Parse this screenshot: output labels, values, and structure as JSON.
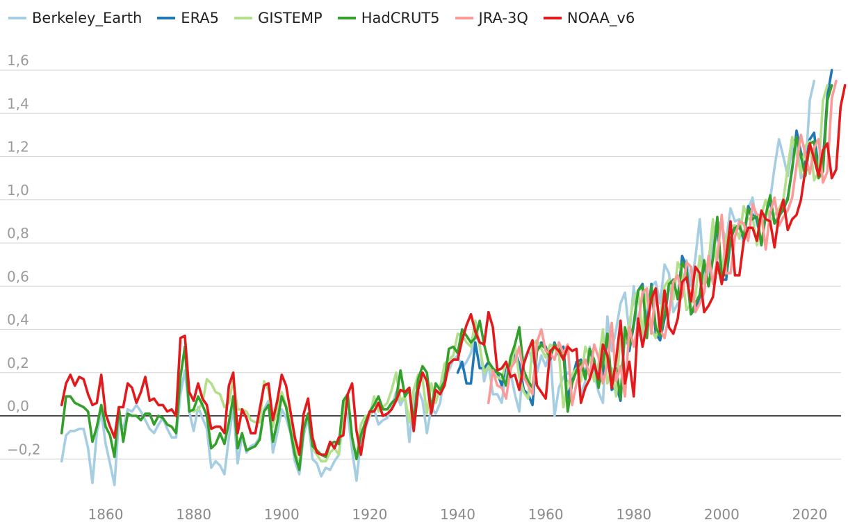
{
  "chart_data": {
    "type": "line",
    "title": "",
    "xlabel": "",
    "ylabel": "",
    "xlim": [
      1849,
      2025
    ],
    "ylim": [
      -0.33,
      1.68
    ],
    "legend_position": "top-left",
    "grid": true,
    "zero_line": true,
    "y_ticks": [
      {
        "value": -0.2,
        "label": "−0,2"
      },
      {
        "value": 0.0,
        "label": "0,0"
      },
      {
        "value": 0.2,
        "label": "0,2"
      },
      {
        "value": 0.4,
        "label": "0,4"
      },
      {
        "value": 0.6,
        "label": "0,6"
      },
      {
        "value": 0.8,
        "label": "0,8"
      },
      {
        "value": 1.0,
        "label": "1,0"
      },
      {
        "value": 1.2,
        "label": "1,2"
      },
      {
        "value": 1.4,
        "label": "1,4"
      },
      {
        "value": 1.6,
        "label": "1,6"
      }
    ],
    "x_ticks": [
      {
        "value": 1860,
        "label": "1860"
      },
      {
        "value": 1880,
        "label": "1880"
      },
      {
        "value": 1900,
        "label": "1900"
      },
      {
        "value": 1920,
        "label": "1920"
      },
      {
        "value": 1940,
        "label": "1940"
      },
      {
        "value": 1960,
        "label": "1960"
      },
      {
        "value": 1980,
        "label": "1980"
      },
      {
        "value": 2000,
        "label": "2000"
      },
      {
        "value": 2020,
        "label": "2020"
      }
    ],
    "series": [
      {
        "name": "Berkeley_Earth",
        "color": "#a6cee3",
        "start": 1850,
        "values": [
          -0.21,
          -0.09,
          -0.07,
          -0.07,
          -0.06,
          -0.06,
          -0.15,
          -0.31,
          -0.08,
          0.02,
          -0.13,
          -0.22,
          -0.32,
          -0.02,
          -0.06,
          0.03,
          0.02,
          0.05,
          0.02,
          -0.02,
          -0.06,
          -0.08,
          -0.04,
          -0.01,
          -0.06,
          -0.1,
          -0.1,
          0.1,
          0.21,
          0.02,
          -0.07,
          0.04,
          -0.01,
          -0.06,
          -0.24,
          -0.21,
          -0.23,
          -0.27,
          -0.1,
          0.04,
          -0.22,
          -0.09,
          -0.17,
          -0.14,
          -0.13,
          -0.1,
          0.03,
          0.07,
          -0.17,
          -0.08,
          0.03,
          -0.01,
          -0.08,
          -0.21,
          -0.27,
          -0.09,
          -0.01,
          -0.2,
          -0.22,
          -0.28,
          -0.24,
          -0.25,
          -0.21,
          -0.18,
          -0.01,
          0.01,
          -0.16,
          -0.3,
          -0.11,
          -0.06,
          0.0,
          0.03,
          -0.04,
          -0.02,
          -0.01,
          0.04,
          0.11,
          0.05,
          0.09,
          -0.12,
          0.09,
          0.12,
          0.07,
          -0.08,
          0.04,
          0.01,
          0.06,
          0.19,
          0.21,
          0.26,
          0.28,
          0.22,
          0.25,
          0.29,
          0.38,
          0.33,
          0.16,
          0.24,
          0.1,
          0.1,
          0.06,
          0.21,
          0.2,
          0.1,
          0.02,
          0.26,
          0.3,
          0.27,
          0.2,
          0.28,
          0.23,
          0.3,
          0.0,
          0.13,
          0.18,
          0.2,
          0.18,
          0.25,
          0.1,
          0.16,
          0.32,
          0.2,
          0.11,
          0.06,
          0.46,
          0.3,
          0.4,
          0.52,
          0.57,
          0.38,
          0.6,
          0.38,
          0.36,
          0.47,
          0.6,
          0.62,
          0.52,
          0.7,
          0.66,
          0.48,
          0.52,
          0.55,
          0.72,
          0.6,
          0.73,
          0.91,
          0.64,
          0.66,
          0.82,
          0.9,
          0.88,
          0.81,
          0.96,
          0.9,
          0.91,
          0.79,
          0.96,
          1.01,
          0.88,
          0.9,
          0.93,
          1.0,
          1.15,
          1.28,
          1.2,
          1.11,
          1.24,
          1.28,
          1.1,
          1.13,
          1.46,
          1.55
        ]
      },
      {
        "name": "ERA5",
        "color": "#1f78b4",
        "start": 1940,
        "values": [
          0.2,
          0.25,
          0.15,
          0.15,
          0.34,
          0.22,
          0.22,
          0.25,
          0.21,
          0.2,
          0.14,
          0.24,
          0.21,
          0.3,
          0.24,
          0.12,
          0.1,
          0.05,
          0.3,
          0.34,
          0.32,
          0.26,
          0.34,
          0.28,
          0.32,
          0.08,
          0.16,
          0.25,
          0.26,
          0.18,
          0.3,
          0.25,
          0.14,
          0.2,
          0.38,
          0.12,
          0.14,
          0.07,
          0.4,
          0.3,
          0.42,
          0.58,
          0.61,
          0.4,
          0.61,
          0.38,
          0.35,
          0.45,
          0.6,
          0.63,
          0.54,
          0.74,
          0.69,
          0.47,
          0.5,
          0.55,
          0.71,
          0.6,
          0.73,
          0.89,
          0.63,
          0.63,
          0.81,
          0.88,
          0.87,
          0.82,
          0.97,
          0.93,
          0.91,
          0.79,
          0.93,
          1.0,
          0.89,
          0.93,
          0.95,
          1.01,
          1.14,
          1.32,
          1.22,
          1.15,
          1.28,
          1.31,
          1.14,
          1.18,
          1.48,
          1.6
        ]
      },
      {
        "name": "GISTEMP",
        "color": "#b2df8a",
        "start": 1880,
        "values": [
          0.02,
          0.03,
          0.06,
          0.17,
          0.15,
          0.11,
          0.1,
          0.04,
          0.06,
          0.17,
          0.03,
          0.03,
          0.02,
          -0.02,
          -0.03,
          -0.03,
          0.16,
          0.12,
          -0.05,
          0.03,
          0.11,
          0.05,
          -0.05,
          -0.15,
          -0.24,
          -0.06,
          0.01,
          -0.15,
          -0.18,
          -0.21,
          -0.21,
          -0.17,
          -0.15,
          -0.18,
          0.03,
          0.1,
          -0.11,
          -0.19,
          -0.04,
          0.0,
          0.0,
          0.09,
          0.02,
          0.04,
          0.06,
          0.12,
          0.2,
          0.07,
          0.09,
          -0.03,
          0.12,
          0.19,
          0.17,
          0.01,
          0.15,
          0.06,
          0.13,
          0.24,
          0.26,
          0.28,
          0.38,
          0.37,
          0.34,
          0.32,
          0.44,
          0.32,
          0.2,
          0.23,
          0.2,
          0.18,
          0.17,
          0.25,
          0.2,
          0.33,
          0.18,
          0.11,
          0.08,
          0.33,
          0.35,
          0.31,
          0.27,
          0.33,
          0.31,
          0.29,
          0.04,
          0.15,
          0.19,
          0.22,
          0.16,
          0.32,
          0.27,
          0.16,
          0.24,
          0.4,
          0.15,
          0.22,
          0.09,
          0.4,
          0.33,
          0.43,
          0.54,
          0.58,
          0.38,
          0.59,
          0.4,
          0.36,
          0.46,
          0.6,
          0.63,
          0.54,
          0.71,
          0.66,
          0.49,
          0.52,
          0.55,
          0.74,
          0.61,
          0.71,
          0.91,
          0.66,
          0.66,
          0.82,
          0.88,
          0.88,
          0.82,
          0.97,
          0.91,
          0.92,
          0.79,
          0.93,
          1.0,
          0.9,
          0.93,
          0.96,
          1.0,
          1.15,
          1.29,
          1.21,
          1.12,
          1.25,
          1.27,
          1.09,
          1.13,
          1.46,
          1.53
        ]
      },
      {
        "name": "HadCRUT5",
        "color": "#33a02c",
        "start": 1850,
        "values": [
          -0.08,
          0.09,
          0.09,
          0.06,
          0.05,
          0.04,
          0.02,
          -0.12,
          -0.05,
          0.05,
          -0.05,
          -0.09,
          -0.19,
          0.04,
          -0.12,
          0.01,
          0.0,
          0.0,
          -0.02,
          0.01,
          0.01,
          -0.04,
          0.0,
          -0.01,
          -0.04,
          -0.05,
          -0.08,
          0.18,
          0.32,
          0.02,
          0.03,
          0.09,
          0.05,
          0.0,
          -0.15,
          -0.13,
          -0.08,
          -0.13,
          -0.03,
          0.09,
          -0.15,
          -0.08,
          -0.16,
          -0.15,
          -0.14,
          -0.11,
          0.02,
          0.05,
          -0.12,
          -0.03,
          0.09,
          0.04,
          -0.07,
          -0.18,
          -0.25,
          -0.06,
          0.01,
          -0.14,
          -0.16,
          -0.18,
          -0.19,
          -0.13,
          -0.12,
          -0.13,
          0.07,
          0.1,
          -0.1,
          -0.2,
          -0.09,
          -0.03,
          0.02,
          0.05,
          0.09,
          0.03,
          0.03,
          0.06,
          0.08,
          0.21,
          0.09,
          0.12,
          -0.03,
          0.17,
          0.23,
          0.2,
          0.03,
          0.15,
          0.12,
          0.16,
          0.31,
          0.32,
          0.29,
          0.4,
          0.37,
          0.34,
          0.36,
          0.44,
          0.33,
          0.25,
          0.22,
          0.2,
          0.19,
          0.14,
          0.27,
          0.33,
          0.41,
          0.21,
          0.16,
          0.13,
          0.3,
          0.33,
          0.31,
          0.27,
          0.33,
          0.31,
          0.29,
          0.02,
          0.15,
          0.21,
          0.25,
          0.17,
          0.31,
          0.26,
          0.13,
          0.24,
          0.38,
          0.14,
          0.22,
          0.08,
          0.41,
          0.32,
          0.43,
          0.58,
          0.6,
          0.36,
          0.6,
          0.41,
          0.37,
          0.47,
          0.61,
          0.63,
          0.54,
          0.71,
          0.67,
          0.47,
          0.52,
          0.56,
          0.72,
          0.6,
          0.73,
          0.92,
          0.64,
          0.66,
          0.82,
          0.87,
          0.88,
          0.83,
          0.96,
          0.91,
          0.93,
          0.79,
          0.93,
          1.02,
          0.89,
          0.92,
          0.96,
          1.0,
          1.15,
          1.29,
          1.2,
          1.11,
          1.26,
          1.27,
          1.1,
          1.13,
          1.46,
          1.53
        ]
      },
      {
        "name": "JRA-3Q",
        "color": "#fb9a99",
        "start": 1947,
        "values": [
          0.06,
          0.21,
          0.14,
          0.13,
          0.08,
          0.22,
          0.25,
          0.32,
          0.18,
          0.14,
          0.1,
          0.34,
          0.4,
          0.3,
          0.29,
          0.26,
          0.34,
          0.29,
          0.33,
          0.05,
          0.15,
          0.22,
          0.26,
          0.18,
          0.33,
          0.27,
          0.15,
          0.24,
          0.43,
          0.16,
          0.23,
          0.09,
          0.41,
          0.32,
          0.43,
          0.57,
          0.59,
          0.38,
          0.59,
          0.4,
          0.36,
          0.47,
          0.62,
          0.65,
          0.55,
          0.71,
          0.69,
          0.48,
          0.52,
          0.57,
          0.74,
          0.61,
          0.73,
          0.93,
          0.66,
          0.66,
          0.83,
          0.9,
          0.89,
          0.81,
          0.98,
          0.93,
          0.93,
          0.77,
          0.94,
          1.01,
          0.88,
          0.92,
          0.95,
          1.01,
          1.16,
          1.3,
          1.21,
          1.12,
          1.24,
          1.28,
          1.08,
          1.13,
          1.47,
          1.55
        ]
      },
      {
        "name": "NOAA_v6",
        "color": "#e31a1c",
        "start": 1850,
        "values": [
          0.05,
          0.15,
          0.19,
          0.14,
          0.18,
          0.17,
          0.1,
          0.05,
          0.06,
          0.19,
          0.01,
          -0.05,
          -0.1,
          0.04,
          0.04,
          0.15,
          0.13,
          0.06,
          0.11,
          0.18,
          0.07,
          0.08,
          0.05,
          0.05,
          0.02,
          0.03,
          0.0,
          0.36,
          0.37,
          0.11,
          0.07,
          0.15,
          0.08,
          0.05,
          -0.06,
          -0.05,
          -0.05,
          -0.08,
          0.14,
          0.2,
          -0.08,
          0.03,
          -0.01,
          -0.08,
          -0.08,
          0.03,
          0.14,
          0.15,
          -0.02,
          0.07,
          0.19,
          0.14,
          0.02,
          -0.1,
          -0.18,
          0.01,
          0.08,
          -0.1,
          -0.17,
          -0.18,
          -0.18,
          -0.12,
          -0.15,
          -0.1,
          -0.09,
          0.1,
          0.15,
          -0.07,
          -0.18,
          -0.05,
          0.02,
          0.02,
          0.06,
          0.0,
          0.01,
          0.03,
          0.07,
          0.12,
          0.11,
          0.13,
          -0.07,
          0.12,
          0.2,
          0.16,
          0.01,
          0.12,
          0.1,
          0.14,
          0.24,
          0.26,
          0.26,
          0.35,
          0.42,
          0.47,
          0.39,
          0.34,
          0.33,
          0.48,
          0.41,
          0.21,
          0.22,
          0.25,
          0.18,
          0.19,
          0.12,
          0.24,
          0.3,
          0.35,
          0.14,
          0.11,
          0.08,
          0.3,
          0.32,
          0.3,
          0.26,
          0.32,
          0.3,
          0.31,
          0.06,
          0.13,
          0.17,
          0.24,
          0.17,
          0.33,
          0.28,
          0.13,
          0.26,
          0.44,
          0.15,
          0.25,
          0.09,
          0.45,
          0.32,
          0.42,
          0.54,
          0.59,
          0.39,
          0.58,
          0.41,
          0.38,
          0.45,
          0.62,
          0.64,
          0.53,
          0.69,
          0.66,
          0.48,
          0.51,
          0.55,
          0.71,
          0.61,
          0.73,
          0.9,
          0.65,
          0.65,
          0.81,
          0.87,
          0.87,
          0.81,
          0.95,
          0.91,
          0.9,
          0.78,
          0.93,
          1.0,
          0.86,
          0.91,
          0.93,
          1.0,
          1.14,
          1.26,
          1.19,
          1.11,
          1.23,
          1.26,
          1.1,
          1.14,
          1.43,
          1.53
        ]
      }
    ]
  }
}
